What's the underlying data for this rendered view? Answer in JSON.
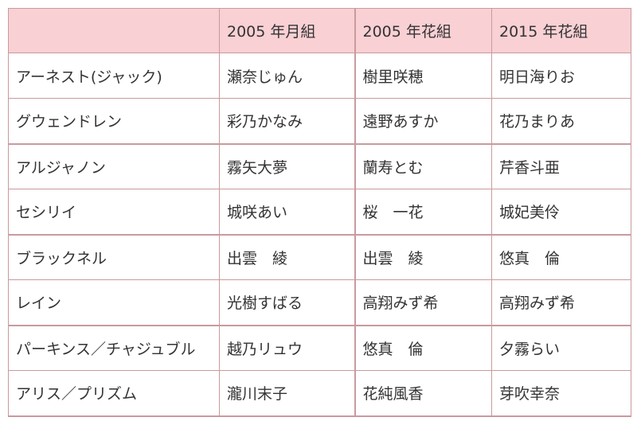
{
  "table": {
    "headers": [
      "",
      "2005 年月組",
      "2005 年花組",
      "2015 年花組"
    ],
    "rows": [
      [
        "アーネスト(ジャック)",
        "瀬奈じゅん",
        "樹里咲穂",
        "明日海りお"
      ],
      [
        "グウェンドレン",
        "彩乃かなみ",
        "遠野あすか",
        "花乃まりあ"
      ],
      [
        "アルジャノン",
        "霧矢大夢",
        "蘭寿とむ",
        "芹香斗亜"
      ],
      [
        "セシリイ",
        "城咲あい",
        "桜　一花",
        "城妃美伶"
      ],
      [
        "ブラックネル",
        "出雲　綾",
        "出雲　綾",
        "悠真　倫"
      ],
      [
        "レイン",
        "光樹すばる",
        "高翔みず希",
        "高翔みず希"
      ],
      [
        "パーキンス／チャジュブル",
        "越乃リュウ",
        "悠真　倫",
        "夕霧らい"
      ],
      [
        "アリス／プリズム",
        "瀧川末子",
        "花純風香",
        "芽吹幸奈"
      ]
    ]
  }
}
